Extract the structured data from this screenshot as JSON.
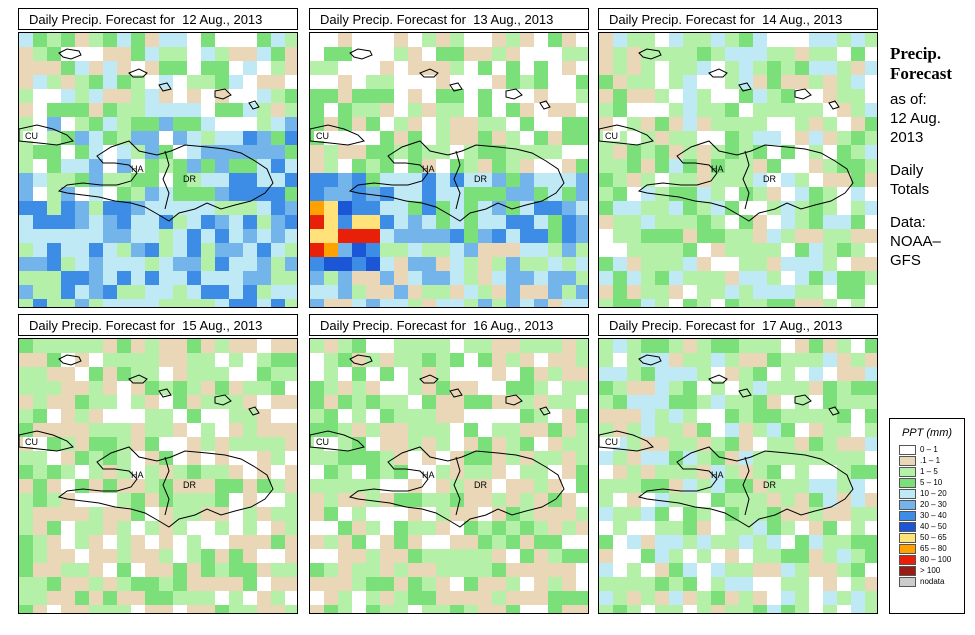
{
  "panels": [
    {
      "title": "Daily Precip. Forecast for  12 Aug., 2013",
      "seed": 11,
      "profile": "wet"
    },
    {
      "title": "Daily Precip. Forecast for  13 Aug., 2013",
      "seed": 23,
      "profile": "storm"
    },
    {
      "title": "Daily Precip. Forecast for  14 Aug., 2013",
      "seed": 37,
      "profile": "moderate"
    },
    {
      "title": "Daily Precip. Forecast for  15 Aug., 2013",
      "seed": 41,
      "profile": "dry"
    },
    {
      "title": "Daily Precip. Forecast for  16 Aug., 2013",
      "seed": 53,
      "profile": "dry"
    },
    {
      "title": "Daily Precip. Forecast for  17 Aug., 2013",
      "seed": 67,
      "profile": "moderate"
    }
  ],
  "map_labels": {
    "cu": "CU",
    "ha": "HA",
    "dr": "DR"
  },
  "side": {
    "title_line1": "Precip.",
    "title_line2": "Forecast",
    "asof": "as of:",
    "date_line1": "12 Aug.",
    "date_line2": "2013",
    "totals_line1": "Daily",
    "totals_line2": "Totals",
    "data_line1": "Data:",
    "data_line2": "NOAA–",
    "data_line3": "GFS"
  },
  "legend": {
    "title": "PPT (mm)",
    "items": [
      {
        "label": "0 – 1",
        "color": "#ffffff"
      },
      {
        "label": ".1 – 1",
        "color": "#ead7b7"
      },
      {
        "label": "1 – 5",
        "color": "#b4f0a8"
      },
      {
        "label": "5 – 10",
        "color": "#7be07a"
      },
      {
        "label": "10 – 20",
        "color": "#bfe9f5"
      },
      {
        "label": "20 – 30",
        "color": "#73b4ea"
      },
      {
        "label": "30 – 40",
        "color": "#3d8de6"
      },
      {
        "label": "40 – 50",
        "color": "#1a56d6"
      },
      {
        "label": "50 – 65",
        "color": "#ffe27a"
      },
      {
        "label": "65 – 80",
        "color": "#ffa200"
      },
      {
        "label": "80 – 100",
        "color": "#e8200a"
      },
      {
        "label": "> 100",
        "color": "#9b1a14"
      },
      {
        "label": "nodata",
        "color": "#cccccc"
      }
    ]
  }
}
